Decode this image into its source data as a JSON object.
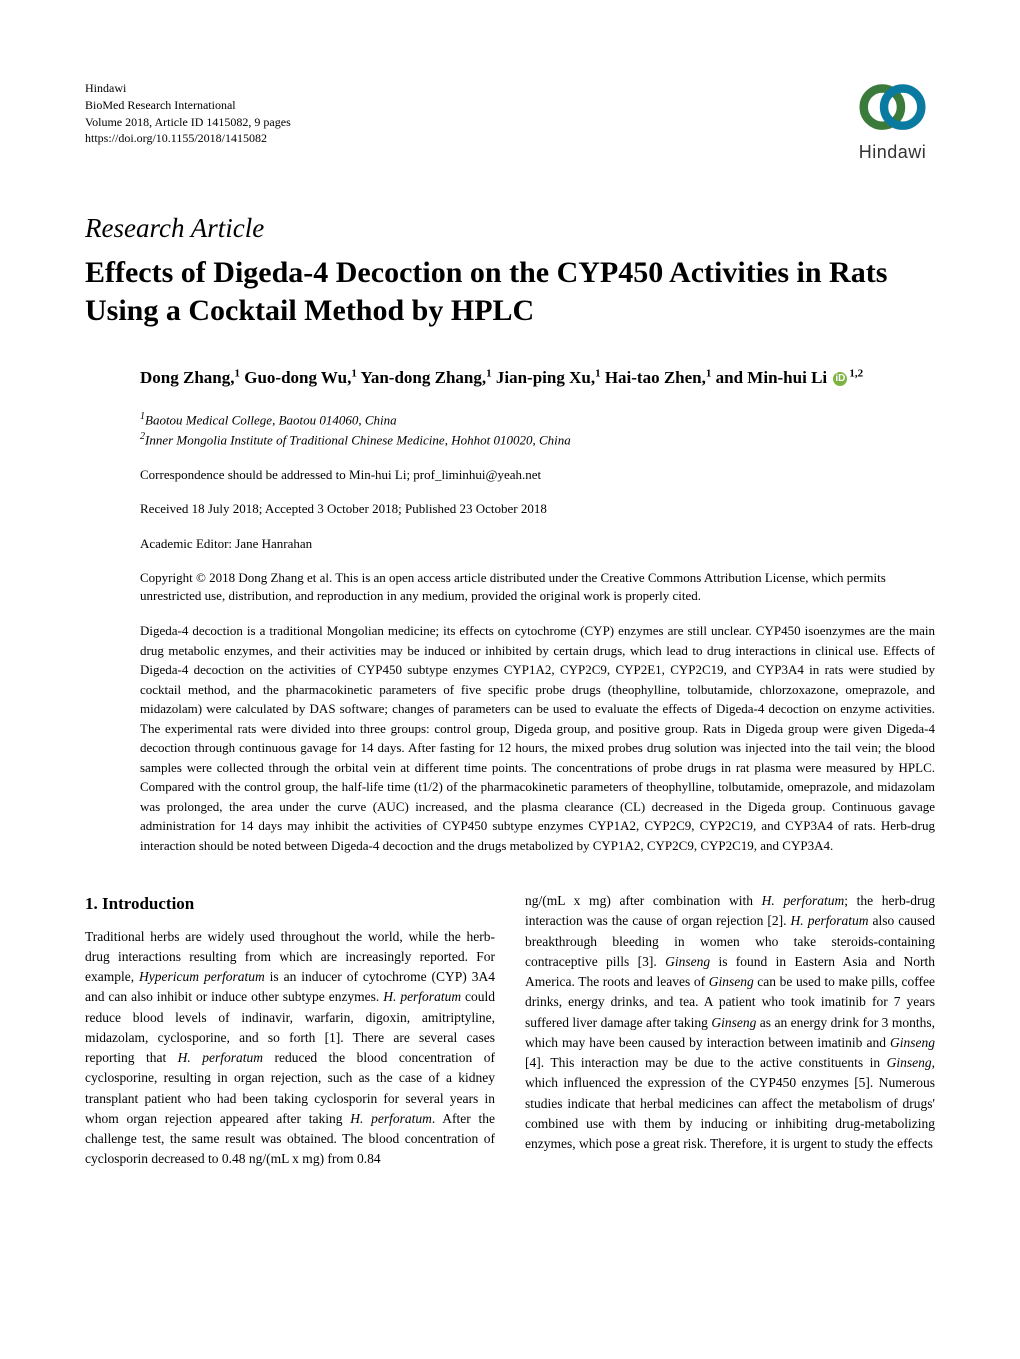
{
  "header": {
    "publisher": "Hindawi",
    "journal": "BioMed Research International",
    "volume_line": "Volume 2018, Article ID 1415082, 9 pages",
    "doi": "https://doi.org/10.1155/2018/1415082",
    "logo_text": "Hindawi",
    "logo_colors": {
      "ring1": "#3a7a3a",
      "ring2": "#0a7aa0"
    }
  },
  "article_type": "Research Article",
  "title": "Effects of Digeda-4 Decoction on the CYP450 Activities in Rats Using a Cocktail Method by HPLC",
  "authors_html": "Dong Zhang,<sup>1</sup> Guo-dong Wu,<sup>1</sup> Yan-dong Zhang,<sup>1</sup> Jian-ping Xu,<sup>1</sup> Hai-tao Zhen,<sup>1</sup> and Min-hui Li <span class=\"orcid-icon\" data-name=\"orcid-icon\" data-interactable=\"false\">iD</span><sup>1,2</sup>",
  "affiliations": {
    "a1": "Baotou Medical College, Baotou 014060, China",
    "a2": "Inner Mongolia Institute of Traditional Chinese Medicine, Hohhot 010020, China"
  },
  "correspondence": "Correspondence should be addressed to Min-hui Li; prof_liminhui@yeah.net",
  "dates": "Received 18 July 2018; Accepted 3 October 2018; Published 23 October 2018",
  "editor": "Academic Editor: Jane Hanrahan",
  "copyright": "Copyright © 2018 Dong Zhang et al. This is an open access article distributed under the Creative Commons Attribution License, which permits unrestricted use, distribution, and reproduction in any medium, provided the original work is properly cited.",
  "abstract": "Digeda-4 decoction is a traditional Mongolian medicine; its effects on cytochrome (CYP) enzymes are still unclear. CYP450 isoenzymes are the main drug metabolic enzymes, and their activities may be induced or inhibited by certain drugs, which lead to drug interactions in clinical use. Effects of Digeda-4 decoction on the activities of CYP450 subtype enzymes CYP1A2, CYP2C9, CYP2E1, CYP2C19, and CYP3A4 in rats were studied by cocktail method, and the pharmacokinetic parameters of five specific probe drugs (theophylline, tolbutamide, chlorzoxazone, omeprazole, and midazolam) were calculated by DAS software; changes of parameters can be used to evaluate the effects of Digeda-4 decoction on enzyme activities. The experimental rats were divided into three groups: control group, Digeda group, and positive group. Rats in Digeda group were given Digeda-4 decoction through continuous gavage for 14 days. After fasting for 12 hours, the mixed probes drug solution was injected into the tail vein; the blood samples were collected through the orbital vein at different time points. The concentrations of probe drugs in rat plasma were measured by HPLC. Compared with the control group, the half-life time (t1/2) of the pharmacokinetic parameters of theophylline, tolbutamide, omeprazole, and midazolam was prolonged, the area under the curve (AUC) increased, and the plasma clearance (CL) decreased in the Digeda group. Continuous gavage administration for 14 days may inhibit the activities of CYP450 subtype enzymes CYP1A2, CYP2C9, CYP2C19, and CYP3A4 of rats. Herb-drug interaction should be noted between Digeda-4 decoction and the drugs metabolized by CYP1A2, CYP2C9, CYP2C19, and CYP3A4.",
  "section_heading": "1. Introduction",
  "body": {
    "col1": "Traditional herbs are widely used throughout the world, while the herb-drug interactions resulting from which are increasingly reported. For example, <span class=\"italic\">Hypericum perforatum</span> is an inducer of cytochrome (CYP) 3A4 and can also inhibit or induce other subtype enzymes. <span class=\"italic\">H. perforatum</span> could reduce blood levels of indinavir, warfarin, digoxin, amitriptyline, midazolam, cyclosporine, and so forth [1]. There are several cases reporting that <span class=\"italic\">H. perforatum</span> reduced the blood concentration of cyclosporine, resulting in organ rejection, such as the case of a kidney transplant patient who had been taking cyclosporin for several years in whom organ rejection appeared after taking <span class=\"italic\">H. perforatum</span>. After the challenge test, the same result was obtained. The blood concentration of cyclosporin decreased to 0.48 ng/(mL x mg) from 0.84",
    "col2": "ng/(mL x mg) after combination with <span class=\"italic\">H. perforatum</span>; the herb-drug interaction was the cause of organ rejection [2]. <span class=\"italic\">H. perforatum</span> also caused breakthrough bleeding in women who take steroids-containing contraceptive pills [3]. <span class=\"italic\">Ginseng</span> is found in Eastern Asia and North America. The roots and leaves of <span class=\"italic\">Ginseng</span> can be used to make pills, coffee drinks, energy drinks, and tea. A patient who took imatinib for 7 years suffered liver damage after taking <span class=\"italic\">Ginseng</span> as an energy drink for 3 months, which may have been caused by interaction between imatinib and <span class=\"italic\">Ginseng</span> [4]. This interaction may be due to the active constituents in <span class=\"italic\">Ginseng</span>, which influenced the expression of the CYP450 enzymes [5]. Numerous studies indicate that herbal medicines can affect the metabolism of drugs' combined use with them by inducing or inhibiting drug-metabolizing enzymes, which pose a great risk. Therefore, it is urgent to study the effects"
  },
  "colors": {
    "text": "#000000",
    "background": "#ffffff",
    "orcid": "#7cb342"
  },
  "fonts": {
    "body_family": "Minion Pro, Times New Roman, serif",
    "title_size_pt": 22,
    "body_size_pt": 10
  }
}
